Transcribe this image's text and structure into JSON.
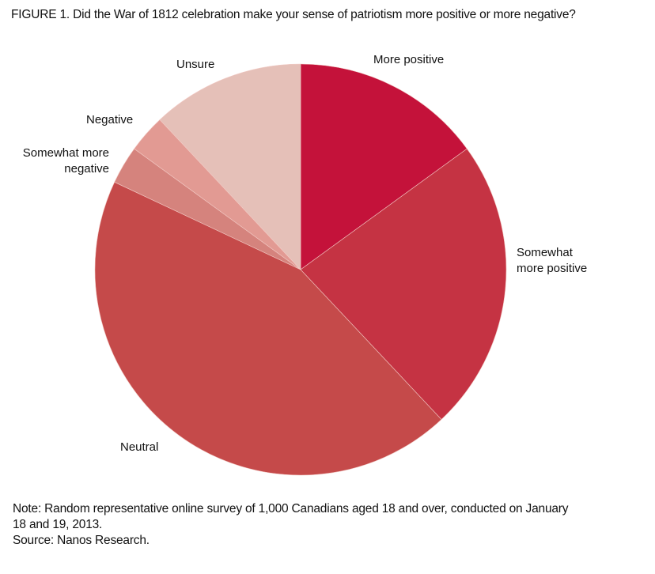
{
  "chart_data": {
    "type": "pie",
    "title": "FIGURE 1. Did the War of 1812 celebration make your sense of patriotism more positive or more negative?",
    "unit": "percent (estimated from slice angles)",
    "start": "top, clockwise",
    "slices": [
      {
        "label": "More positive",
        "value": 15,
        "color": "#c4123a"
      },
      {
        "label": "Somewhat more positive",
        "value": 23,
        "color": "#c53343"
      },
      {
        "label": "Neutral",
        "value": 44,
        "color": "#c54a4a"
      },
      {
        "label": "Somewhat more negative",
        "value": 3,
        "color": "#d5837d"
      },
      {
        "label": "Negative",
        "value": 3,
        "color": "#e29a93"
      },
      {
        "label": "Unsure",
        "value": 12,
        "color": "#e5c0b8"
      }
    ],
    "legend": "none (labels placed beside slices)"
  },
  "labels": {
    "more_positive": "More positive",
    "somewhat_positive_1": "Somewhat",
    "somewhat_positive_2": "more positive",
    "neutral": "Neutral",
    "somewhat_negative_1": "Somewhat more",
    "somewhat_negative_2": "negative",
    "negative": "Negative",
    "unsure": "Unsure"
  },
  "notes": {
    "note_line1": "Note: Random representative online survey of 1,000 Canadians aged 18 and over, conducted on January",
    "note_line2": "18 and 19, 2013.",
    "source": "Source: Nanos Research."
  }
}
